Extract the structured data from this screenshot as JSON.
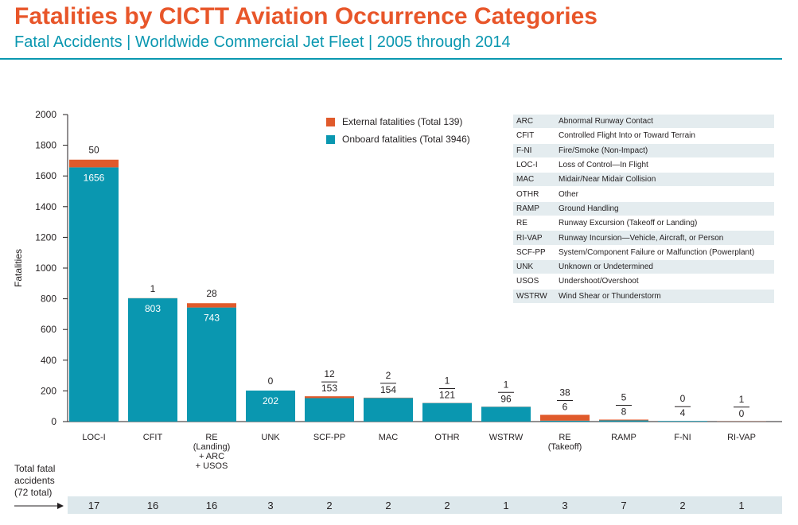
{
  "title": "Fatalities by CICTT Aviation Occurrence Categories",
  "subtitle": "Fatal Accidents | Worldwide Commercial Jet Fleet | 2005 through 2014",
  "colors": {
    "external": "#e05a2b",
    "onboard": "#0a97b0",
    "title": "#e8562a",
    "subtitle": "#0a97b0"
  },
  "legend": {
    "external": "External fatalities (Total 139)",
    "onboard": "Onboard fatalities (Total 3946)"
  },
  "abbreviations": [
    {
      "code": "ARC",
      "desc": "Abnormal Runway Contact"
    },
    {
      "code": "CFIT",
      "desc": "Controlled Flight Into or Toward Terrain"
    },
    {
      "code": "F-NI",
      "desc": "Fire/Smoke (Non-Impact)"
    },
    {
      "code": "LOC-I",
      "desc": "Loss of Control—In Flight"
    },
    {
      "code": "MAC",
      "desc": "Midair/Near Midair Collision"
    },
    {
      "code": "OTHR",
      "desc": "Other"
    },
    {
      "code": "RAMP",
      "desc": "Ground Handling"
    },
    {
      "code": "RE",
      "desc": "Runway Excursion (Takeoff or Landing)"
    },
    {
      "code": "RI-VAP",
      "desc": "Runway Incursion—Vehicle, Aircraft, or Person"
    },
    {
      "code": "SCF-PP",
      "desc": "System/Component Failure or Malfunction (Powerplant)"
    },
    {
      "code": "UNK",
      "desc": "Unknown or Undetermined"
    },
    {
      "code": "USOS",
      "desc": "Undershoot/Overshoot"
    },
    {
      "code": "WSTRW",
      "desc": "Wind Shear or Thunderstorm"
    }
  ],
  "total_fatal_label": [
    "Total fatal",
    "accidents",
    "(72 total)"
  ],
  "chart_data": {
    "type": "bar",
    "stacked": true,
    "ylabel": "Fatalities",
    "ylim": [
      0,
      2000
    ],
    "yticks": [
      0,
      200,
      400,
      600,
      800,
      1000,
      1200,
      1400,
      1600,
      1800,
      2000
    ],
    "categories": [
      [
        "LOC-I"
      ],
      [
        "CFIT"
      ],
      [
        "RE",
        "(Landing)",
        "+ ARC",
        "+ USOS"
      ],
      [
        "UNK"
      ],
      [
        "SCF-PP"
      ],
      [
        "MAC"
      ],
      [
        "OTHR"
      ],
      [
        "WSTRW"
      ],
      [
        "RE",
        "(Takeoff)"
      ],
      [
        "RAMP"
      ],
      [
        "F-NI"
      ],
      [
        "RI-VAP"
      ]
    ],
    "series": [
      {
        "name": "Onboard fatalities (Total 3946)",
        "values": [
          1656,
          803,
          743,
          202,
          153,
          154,
          121,
          96,
          6,
          8,
          4,
          0
        ]
      },
      {
        "name": "External fatalities (Total 139)",
        "values": [
          50,
          1,
          28,
          0,
          12,
          2,
          1,
          1,
          38,
          5,
          0,
          1
        ]
      }
    ],
    "total_fatal_accidents": [
      17,
      16,
      16,
      3,
      2,
      2,
      2,
      1,
      3,
      7,
      2,
      1
    ]
  }
}
